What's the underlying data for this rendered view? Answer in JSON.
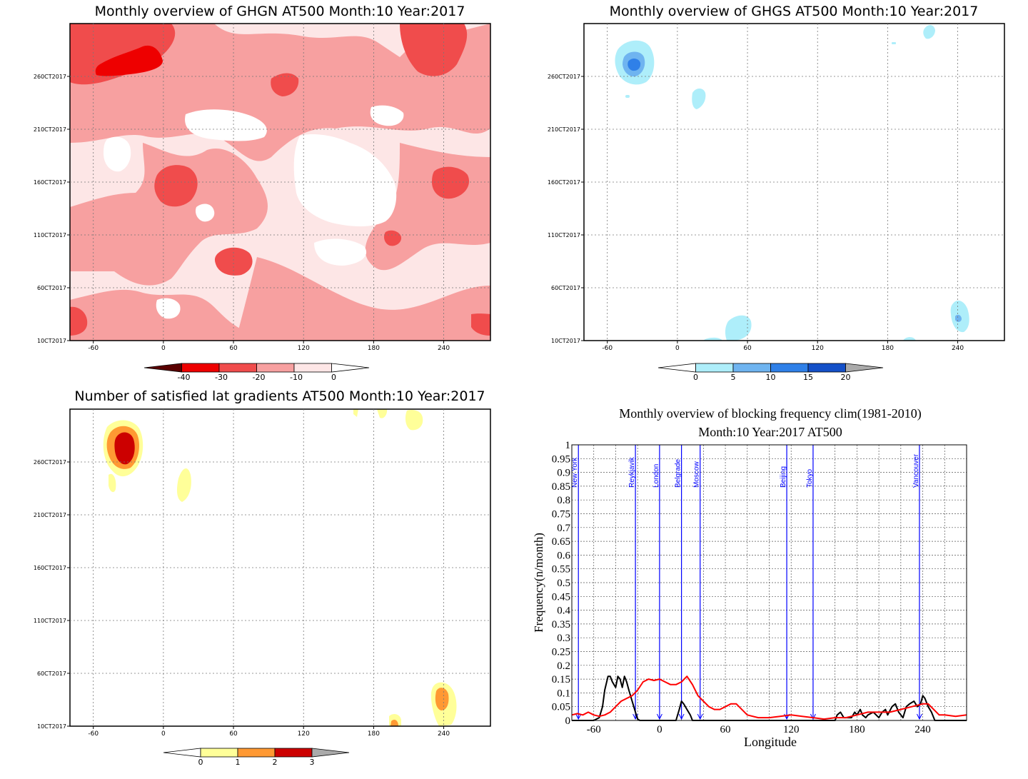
{
  "palettes": {
    "ghgn": [
      "#5a0000",
      "#ee0000",
      "#f04c4c",
      "#f7a0a0",
      "#fde6e6",
      "#ffffff"
    ],
    "ghgs": [
      "#ffffff",
      "#aeeefa",
      "#6fb4f0",
      "#2f80e8",
      "#1450c8",
      "#aaaaaa"
    ],
    "sat": [
      "#ffffff",
      "#ffff99",
      "#ff9933",
      "#cc0000",
      "#aaaaaa"
    ]
  },
  "panels": [
    {
      "title": "Monthly overview of GHGN AT500 Month:10 Year:2017",
      "x_ticks": [
        "-60",
        "0",
        "60",
        "120",
        "180",
        "240"
      ],
      "y_ticks": [
        "10CT2017",
        "60CT2017",
        "110CT2017",
        "160CT2017",
        "210CT2017",
        "260CT2017"
      ],
      "colorbar_ticks": [
        "-40",
        "-30",
        "-20",
        "-10",
        "0"
      ]
    },
    {
      "title": "Monthly overview of GHGS AT500 Month:10 Year:2017",
      "x_ticks": [
        "-60",
        "0",
        "60",
        "120",
        "180",
        "240"
      ],
      "y_ticks": [
        "10CT2017",
        "60CT2017",
        "110CT2017",
        "160CT2017",
        "210CT2017",
        "260CT2017"
      ],
      "colorbar_ticks": [
        "0",
        "5",
        "10",
        "15",
        "20"
      ]
    },
    {
      "title": "Number of satisfied lat gradients AT500 Month:10 Year:2017",
      "x_ticks": [
        "-60",
        "0",
        "60",
        "120",
        "180",
        "240"
      ],
      "y_ticks": [
        "10CT2017",
        "60CT2017",
        "110CT2017",
        "160CT2017",
        "210CT2017",
        "260CT2017"
      ],
      "colorbar_ticks": [
        "0",
        "1",
        "2",
        "3"
      ]
    }
  ],
  "chart_data": [
    {
      "type": "heatmap",
      "title": "Monthly overview of GHGN AT500 Month:10 Year:2017",
      "x_ticks": [
        -60,
        0,
        60,
        120,
        180,
        240
      ],
      "xlim": [
        -80,
        280
      ],
      "y_ticks": [
        "10CT2017",
        "60CT2017",
        "110CT2017",
        "160CT2017",
        "210CT2017",
        "260CT2017"
      ],
      "colorbar_levels": [
        -40,
        -30,
        -20,
        -10,
        0
      ],
      "colors": [
        "#5a0000",
        "#ee0000",
        "#f04c4c",
        "#f7a0a0",
        "#fde6e6",
        "#ffffff"
      ]
    },
    {
      "type": "heatmap",
      "title": "Monthly overview of GHGS AT500 Month:10 Year:2017",
      "x_ticks": [
        -60,
        0,
        60,
        120,
        180,
        240
      ],
      "xlim": [
        -80,
        280
      ],
      "y_ticks": [
        "10CT2017",
        "60CT2017",
        "110CT2017",
        "160CT2017",
        "210CT2017",
        "260CT2017"
      ],
      "colorbar_levels": [
        0,
        5,
        10,
        15,
        20
      ],
      "colors": [
        "#ffffff",
        "#aeeefa",
        "#6fb4f0",
        "#2f80e8",
        "#1450c8",
        "#aaaaaa"
      ]
    },
    {
      "type": "heatmap",
      "title": "Number of satisfied lat gradients AT500 Month:10 Year:2017",
      "x_ticks": [
        -60,
        0,
        60,
        120,
        180,
        240
      ],
      "xlim": [
        -80,
        280
      ],
      "y_ticks": [
        "10CT2017",
        "60CT2017",
        "110CT2017",
        "160CT2017",
        "210CT2017",
        "260CT2017"
      ],
      "colorbar_levels": [
        0,
        1,
        2,
        3
      ],
      "colors": [
        "#ffffff",
        "#ffff99",
        "#ff9933",
        "#cc0000",
        "#aaaaaa"
      ]
    },
    {
      "type": "line",
      "title": "Monthly overview of blocking frequency clim(1981-2010)",
      "subtitle": "Month:10 Year:2017  AT500",
      "xlabel": "Longitude",
      "ylabel": "Frequency(n/month)",
      "xlim": [
        -80,
        280
      ],
      "ylim": [
        0,
        1
      ],
      "x_ticks": [
        -60,
        0,
        60,
        120,
        180,
        240
      ],
      "y_ticks": [
        "0",
        "0.05",
        "0.1",
        "0.15",
        "0.2",
        "0.25",
        "0.3",
        "0.35",
        "0.4",
        "0.45",
        "0.5",
        "0.55",
        "0.6",
        "0.65",
        "0.7",
        "0.75",
        "0.8",
        "0.85",
        "0.9",
        "0.95",
        "1"
      ],
      "cities": [
        {
          "name": "New York",
          "lon": -74
        },
        {
          "name": "Reykjavik",
          "lon": -22
        },
        {
          "name": "London",
          "lon": 0
        },
        {
          "name": "Belgrade",
          "lon": 20
        },
        {
          "name": "Moscow",
          "lon": 37
        },
        {
          "name": "Beijing",
          "lon": 116
        },
        {
          "name": "Tokyo",
          "lon": 140
        },
        {
          "name": "Vancouver",
          "lon": 237
        }
      ],
      "series": [
        {
          "color": "#000000",
          "x": [
            -80,
            -60,
            -55,
            -52,
            -50,
            -47,
            -45,
            -43,
            -40,
            -38,
            -36,
            -34,
            -32,
            -30,
            -28,
            -25,
            -22,
            -20,
            -18,
            0,
            15,
            18,
            20,
            22,
            25,
            28,
            30,
            160,
            162,
            165,
            168,
            175,
            178,
            180,
            183,
            185,
            188,
            190,
            195,
            200,
            203,
            206,
            208,
            212,
            215,
            218,
            222,
            225,
            228,
            232,
            235,
            238,
            240,
            242,
            245,
            248,
            251,
            280
          ],
          "y": [
            0,
            0,
            0.01,
            0.05,
            0.11,
            0.16,
            0.16,
            0.14,
            0.12,
            0.16,
            0.15,
            0.12,
            0.16,
            0.14,
            0.11,
            0.07,
            0.03,
            0.005,
            0,
            0,
            0,
            0.04,
            0.07,
            0.06,
            0.04,
            0.02,
            0,
            0,
            0.02,
            0.03,
            0.01,
            0.01,
            0.03,
            0.02,
            0.04,
            0.02,
            0.01,
            0.02,
            0.03,
            0.01,
            0.03,
            0.04,
            0.02,
            0.05,
            0.06,
            0.03,
            0.01,
            0.05,
            0.06,
            0.07,
            0.05,
            0.06,
            0.09,
            0.08,
            0.05,
            0.03,
            0,
            0
          ]
        },
        {
          "color": "#ff0000",
          "x": [
            -80,
            -75,
            -70,
            -65,
            -60,
            -55,
            -50,
            -45,
            -40,
            -35,
            -30,
            -25,
            -20,
            -15,
            -10,
            -5,
            0,
            5,
            10,
            15,
            20,
            25,
            30,
            35,
            40,
            45,
            50,
            55,
            60,
            65,
            70,
            75,
            80,
            90,
            100,
            110,
            120,
            130,
            140,
            150,
            160,
            170,
            180,
            190,
            200,
            210,
            220,
            230,
            240,
            245,
            250,
            255,
            260,
            270,
            280
          ],
          "y": [
            0.02,
            0.025,
            0.02,
            0.03,
            0.02,
            0.015,
            0.02,
            0.03,
            0.05,
            0.07,
            0.08,
            0.09,
            0.11,
            0.14,
            0.15,
            0.145,
            0.15,
            0.14,
            0.13,
            0.13,
            0.14,
            0.16,
            0.13,
            0.09,
            0.07,
            0.05,
            0.04,
            0.04,
            0.05,
            0.06,
            0.06,
            0.04,
            0.02,
            0.01,
            0.01,
            0.015,
            0.02,
            0.015,
            0.01,
            0.005,
            0.01,
            0.01,
            0.02,
            0.03,
            0.03,
            0.03,
            0.04,
            0.05,
            0.06,
            0.06,
            0.04,
            0.02,
            0.02,
            0.015,
            0.02
          ]
        }
      ]
    }
  ]
}
